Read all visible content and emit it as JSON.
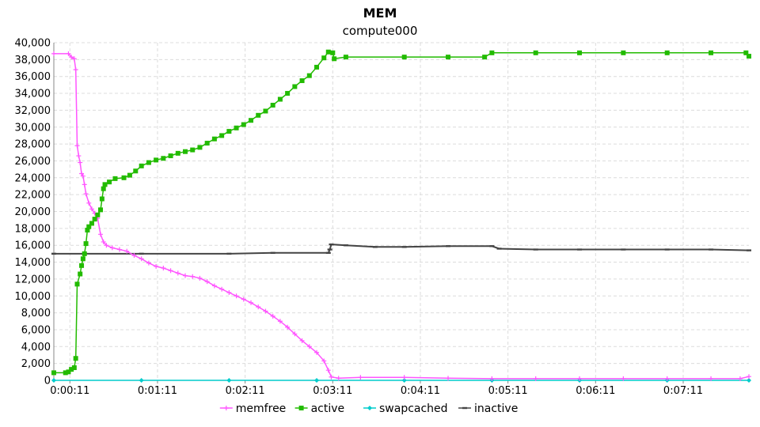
{
  "chart_data": {
    "type": "line",
    "title": "MEM",
    "subtitle": "compute000",
    "xlabel": "",
    "ylabel": "",
    "ylim": [
      0,
      40000
    ],
    "xlim": [
      "0:00:00",
      "0:07:56"
    ],
    "x_ticks": [
      "0:00:11",
      "0:01:11",
      "0:02:11",
      "0:03:11",
      "0:04:11",
      "0:05:11",
      "0:06:11",
      "0:07:11"
    ],
    "y_ticks": [
      0,
      2000,
      4000,
      6000,
      8000,
      10000,
      12000,
      14000,
      16000,
      18000,
      20000,
      22000,
      24000,
      26000,
      28000,
      30000,
      32000,
      34000,
      36000,
      38000,
      40000
    ],
    "grid": true,
    "legend_position": "bottom",
    "series": [
      {
        "name": "memfree",
        "color": "#ff55ff",
        "marker": "plus",
        "points": [
          [
            "0:00:00",
            38700
          ],
          [
            "0:00:10",
            38700
          ],
          [
            "0:00:12",
            38300
          ],
          [
            "0:00:14",
            38100
          ],
          [
            "0:00:15",
            36800
          ],
          [
            "0:00:16",
            27800
          ],
          [
            "0:00:17",
            26600
          ],
          [
            "0:00:18",
            25800
          ],
          [
            "0:00:19",
            24500
          ],
          [
            "0:00:20",
            24200
          ],
          [
            "0:00:21",
            23200
          ],
          [
            "0:00:22",
            22100
          ],
          [
            "0:00:24",
            21000
          ],
          [
            "0:00:26",
            20300
          ],
          [
            "0:00:28",
            19800
          ],
          [
            "0:00:30",
            19200
          ],
          [
            "0:00:32",
            17300
          ],
          [
            "0:00:34",
            16400
          ],
          [
            "0:00:36",
            16000
          ],
          [
            "0:00:40",
            15700
          ],
          [
            "0:00:45",
            15500
          ],
          [
            "0:00:50",
            15300
          ],
          [
            "0:00:55",
            14800
          ],
          [
            "0:01:00",
            14400
          ],
          [
            "0:01:05",
            13900
          ],
          [
            "0:01:10",
            13500
          ],
          [
            "0:01:15",
            13300
          ],
          [
            "0:01:20",
            13000
          ],
          [
            "0:01:25",
            12700
          ],
          [
            "0:01:30",
            12400
          ],
          [
            "0:01:35",
            12300
          ],
          [
            "0:01:40",
            12100
          ],
          [
            "0:01:45",
            11700
          ],
          [
            "0:01:50",
            11200
          ],
          [
            "0:01:55",
            10800
          ],
          [
            "0:02:00",
            10400
          ],
          [
            "0:02:05",
            10000
          ],
          [
            "0:02:10",
            9600
          ],
          [
            "0:02:15",
            9200
          ],
          [
            "0:02:20",
            8700
          ],
          [
            "0:02:25",
            8200
          ],
          [
            "0:02:30",
            7600
          ],
          [
            "0:02:35",
            7000
          ],
          [
            "0:02:40",
            6300
          ],
          [
            "0:02:45",
            5500
          ],
          [
            "0:02:50",
            4700
          ],
          [
            "0:02:55",
            4000
          ],
          [
            "0:03:00",
            3300
          ],
          [
            "0:03:05",
            2300
          ],
          [
            "0:03:08",
            1200
          ],
          [
            "0:03:10",
            400
          ],
          [
            "0:03:15",
            250
          ],
          [
            "0:03:30",
            350
          ],
          [
            "0:04:00",
            350
          ],
          [
            "0:04:30",
            250
          ],
          [
            "0:05:00",
            200
          ],
          [
            "0:05:30",
            200
          ],
          [
            "0:06:00",
            200
          ],
          [
            "0:06:30",
            200
          ],
          [
            "0:07:00",
            200
          ],
          [
            "0:07:30",
            200
          ],
          [
            "0:07:50",
            200
          ],
          [
            "0:07:56",
            450
          ]
        ]
      },
      {
        "name": "active",
        "color": "#22bb00",
        "marker": "square",
        "points": [
          [
            "0:00:00",
            900
          ],
          [
            "0:00:08",
            900
          ],
          [
            "0:00:10",
            1000
          ],
          [
            "0:00:12",
            1300
          ],
          [
            "0:00:14",
            1500
          ],
          [
            "0:00:15",
            2600
          ],
          [
            "0:00:16",
            11400
          ],
          [
            "0:00:18",
            12600
          ],
          [
            "0:00:19",
            13600
          ],
          [
            "0:00:20",
            14400
          ],
          [
            "0:00:21",
            15000
          ],
          [
            "0:00:22",
            16200
          ],
          [
            "0:00:23",
            17800
          ],
          [
            "0:00:24",
            18200
          ],
          [
            "0:00:26",
            18600
          ],
          [
            "0:00:28",
            19100
          ],
          [
            "0:00:30",
            19600
          ],
          [
            "0:00:32",
            20200
          ],
          [
            "0:00:33",
            21500
          ],
          [
            "0:00:34",
            22700
          ],
          [
            "0:00:35",
            23200
          ],
          [
            "0:00:38",
            23500
          ],
          [
            "0:00:42",
            23900
          ],
          [
            "0:00:48",
            24000
          ],
          [
            "0:00:52",
            24300
          ],
          [
            "0:00:56",
            24800
          ],
          [
            "0:01:00",
            25400
          ],
          [
            "0:01:05",
            25800
          ],
          [
            "0:01:10",
            26100
          ],
          [
            "0:01:15",
            26300
          ],
          [
            "0:01:20",
            26600
          ],
          [
            "0:01:25",
            26900
          ],
          [
            "0:01:30",
            27100
          ],
          [
            "0:01:35",
            27300
          ],
          [
            "0:01:40",
            27600
          ],
          [
            "0:01:45",
            28100
          ],
          [
            "0:01:50",
            28600
          ],
          [
            "0:01:55",
            29000
          ],
          [
            "0:02:00",
            29500
          ],
          [
            "0:02:05",
            29900
          ],
          [
            "0:02:10",
            30300
          ],
          [
            "0:02:15",
            30800
          ],
          [
            "0:02:20",
            31400
          ],
          [
            "0:02:25",
            31900
          ],
          [
            "0:02:30",
            32600
          ],
          [
            "0:02:35",
            33300
          ],
          [
            "0:02:40",
            34000
          ],
          [
            "0:02:45",
            34800
          ],
          [
            "0:02:50",
            35500
          ],
          [
            "0:02:55",
            36100
          ],
          [
            "0:03:00",
            37100
          ],
          [
            "0:03:05",
            38200
          ],
          [
            "0:03:08",
            38900
          ],
          [
            "0:03:11",
            38800
          ],
          [
            "0:03:12",
            38100
          ],
          [
            "0:03:20",
            38300
          ],
          [
            "0:04:00",
            38300
          ],
          [
            "0:04:30",
            38300
          ],
          [
            "0:04:55",
            38300
          ],
          [
            "0:05:00",
            38800
          ],
          [
            "0:05:30",
            38800
          ],
          [
            "0:06:00",
            38800
          ],
          [
            "0:06:30",
            38800
          ],
          [
            "0:07:00",
            38800
          ],
          [
            "0:07:30",
            38800
          ],
          [
            "0:07:54",
            38800
          ],
          [
            "0:07:56",
            38400
          ]
        ]
      },
      {
        "name": "swapcached",
        "color": "#00cccc",
        "marker": "diamond",
        "points": [
          [
            "0:00:00",
            0
          ],
          [
            "0:01:00",
            0
          ],
          [
            "0:02:00",
            0
          ],
          [
            "0:03:00",
            0
          ],
          [
            "0:04:00",
            0
          ],
          [
            "0:05:00",
            0
          ],
          [
            "0:06:00",
            0
          ],
          [
            "0:07:00",
            0
          ],
          [
            "0:07:56",
            0
          ]
        ]
      },
      {
        "name": "inactive",
        "color": "#444444",
        "marker": "dash",
        "points": [
          [
            "0:00:00",
            15000
          ],
          [
            "0:01:00",
            15000
          ],
          [
            "0:02:00",
            15000
          ],
          [
            "0:02:30",
            15100
          ],
          [
            "0:03:08",
            15100
          ],
          [
            "0:03:09",
            15500
          ],
          [
            "0:03:10",
            16100
          ],
          [
            "0:03:20",
            16000
          ],
          [
            "0:03:40",
            15800
          ],
          [
            "0:04:00",
            15800
          ],
          [
            "0:04:30",
            15900
          ],
          [
            "0:05:00",
            15900
          ],
          [
            "0:05:05",
            15600
          ],
          [
            "0:05:30",
            15500
          ],
          [
            "0:06:00",
            15500
          ],
          [
            "0:06:30",
            15500
          ],
          [
            "0:07:00",
            15500
          ],
          [
            "0:07:30",
            15500
          ],
          [
            "0:07:56",
            15400
          ]
        ]
      }
    ]
  }
}
